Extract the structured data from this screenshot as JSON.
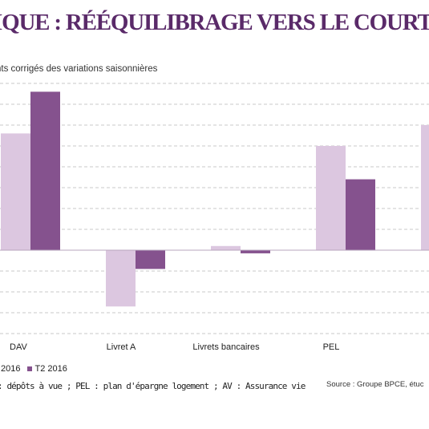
{
  "header": {
    "title": "IQUE : RÉÉQUILIBRAGE VERS LE COURT TE",
    "subtitle": "nts corrigés des variations saisonnières"
  },
  "colors": {
    "title": "#5a2a69",
    "series_light": "#dcc7e0",
    "series_dark": "#85528e",
    "grid": "#c8c8c8",
    "zero_line": "#b7a4bd"
  },
  "chart_data": {
    "type": "bar",
    "categories": [
      "DAV",
      "Livret A",
      "Livrets bancaires",
      "PEL",
      ""
    ],
    "series": [
      {
        "name": "2016",
        "color": "#dcc7e0",
        "values": [
          5.6,
          -2.7,
          0.2,
          5.0,
          6.0
        ]
      },
      {
        "name": "T2 2016",
        "color": "#85528e",
        "values": [
          7.6,
          -0.9,
          -0.15,
          3.4,
          null
        ]
      }
    ],
    "ylim": [
      -4,
      8
    ],
    "grid": true,
    "legend": "bottom-left"
  },
  "legend": {
    "items": [
      {
        "label": "2016",
        "color": "#dcc7e0"
      },
      {
        "label": "T2 2016",
        "color": "#85528e"
      }
    ]
  },
  "footer": {
    "note": ": dépôts à vue ; PEL : plan d'épargne logement ; AV : Assurance vie",
    "source": "Source : Groupe BPCE, étuc"
  }
}
